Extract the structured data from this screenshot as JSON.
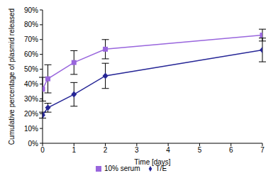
{
  "chart_data": {
    "type": "line",
    "x_label": "Time [days]",
    "y_label": "Cumulative percentage of plasmid released",
    "x": [
      0,
      0.17,
      1,
      2,
      7
    ],
    "series": [
      {
        "name": "T/E",
        "color": "#262696",
        "marker": "diamond",
        "values": [
          19,
          24,
          33,
          45.5,
          63
        ],
        "errors": [
          2,
          3,
          8,
          8.5,
          8
        ]
      },
      {
        "name": "10% serum",
        "color": "#9966dd",
        "marker": "square",
        "values": [
          36.5,
          43.5,
          54.5,
          63.5,
          73
        ],
        "errors": [
          8,
          9.5,
          8,
          6.5,
          4
        ]
      }
    ],
    "xlim": [
      0,
      7
    ],
    "xticks": [
      0,
      1,
      2,
      3,
      4,
      5,
      6,
      7
    ],
    "ylim": [
      0,
      90
    ],
    "yticks": [
      {
        "value": 0,
        "label": "0%"
      },
      {
        "value": 10,
        "label": "10%"
      },
      {
        "value": 20,
        "label": "20%"
      },
      {
        "value": 30,
        "label": "30%"
      },
      {
        "value": 40,
        "label": "40%"
      },
      {
        "value": 50,
        "label": "50%"
      },
      {
        "value": 60,
        "label": "60%"
      },
      {
        "value": 70,
        "label": "70%"
      },
      {
        "value": 80,
        "label": "80%"
      },
      {
        "value": 90,
        "label": "90%"
      }
    ],
    "grid": false,
    "legend": "bottom"
  }
}
